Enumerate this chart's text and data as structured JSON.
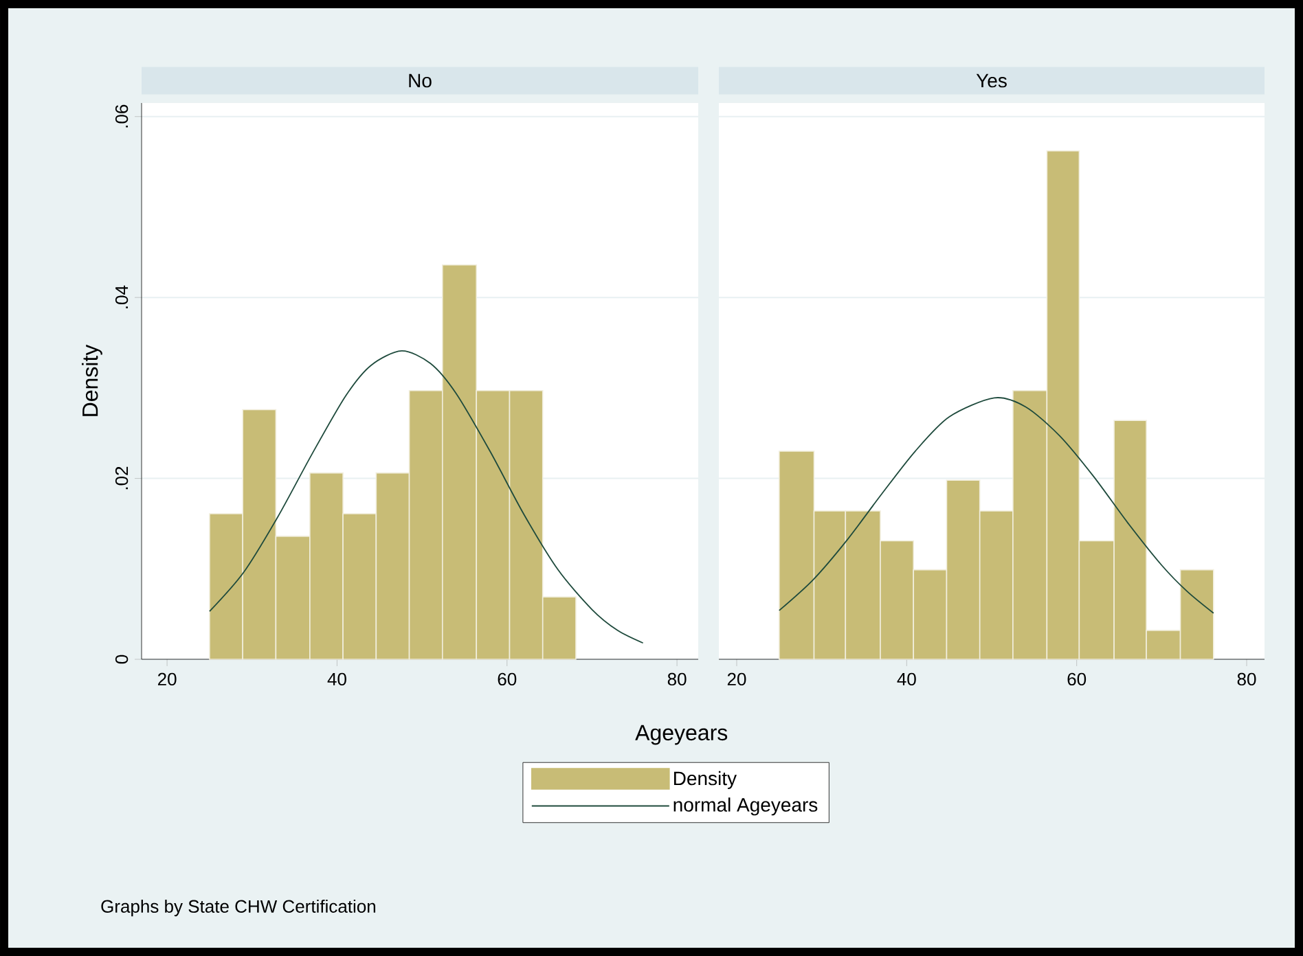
{
  "chart_data": [
    {
      "type": "histogram",
      "title": "No",
      "xlabel": "Ageyears",
      "ylabel": "Density",
      "xlim": [
        17,
        82.5
      ],
      "ylim": [
        0,
        0.0615
      ],
      "xticks": [
        20,
        40,
        60,
        80
      ],
      "yticks": [
        0,
        {
          "value": 0.02,
          "label": ".02"
        },
        {
          "value": 0.04,
          "label": ".04"
        },
        {
          "value": 0.06,
          "label": ".06"
        }
      ],
      "grid": "y",
      "legend": "bottom",
      "annotations": [
        "Graphs by State CHW Certification"
      ],
      "series": [
        {
          "name": "Density",
          "color": "#c8bc76",
          "bins": [
            25,
            28.9,
            32.8,
            36.8,
            40.7,
            44.6,
            48.5,
            52.4,
            56.4,
            60.3,
            64.2,
            68.1
          ],
          "values": [
            0.0161,
            0.0276,
            0.0136,
            0.0206,
            0.0161,
            0.0206,
            0.0297,
            0.0436,
            0.0297,
            0.0297,
            0.0069
          ]
        },
        {
          "name": "normal Ageyears",
          "type": "line",
          "color": "#1e4a3c",
          "x": [
            25,
            29,
            33,
            37,
            41,
            44,
            47.6,
            51,
            54,
            58,
            62,
            66,
            70,
            73,
            76
          ],
          "values": [
            0.0053,
            0.0096,
            0.0157,
            0.0226,
            0.0291,
            0.0325,
            0.0341,
            0.0327,
            0.0294,
            0.023,
            0.016,
            0.0099,
            0.0055,
            0.0032,
            0.0018
          ]
        }
      ]
    },
    {
      "type": "histogram",
      "title": "Yes",
      "xlim": [
        17.9,
        82.1
      ],
      "ylim": [
        0,
        0.0615
      ],
      "xticks": [
        20,
        40,
        60,
        80
      ],
      "yticks": [
        {
          "value": 0,
          "label": null
        },
        {
          "value": 0.02,
          "label": null
        },
        {
          "value": 0.04,
          "label": null
        },
        {
          "value": 0.06,
          "label": null
        }
      ],
      "grid": "y",
      "tick_labels": "x",
      "series": [
        {
          "color": "#c8bc76",
          "bins": [
            25,
            29.1,
            32.8,
            36.9,
            40.8,
            44.7,
            48.6,
            52.5,
            56.5,
            60.3,
            64.4,
            68.2,
            72.2,
            76.1
          ],
          "values": [
            0.023,
            0.0164,
            0.0164,
            0.0131,
            0.0099,
            0.0198,
            0.0164,
            0.0297,
            0.0562,
            0.0131,
            0.0264,
            0.0032,
            0.0099
          ]
        },
        {
          "type": "line",
          "color": "#1e4a3c",
          "x": [
            25,
            29,
            33,
            37,
            41,
            45,
            50.3,
            54,
            58,
            62,
            66,
            70,
            73,
            76.1
          ],
          "values": [
            0.0054,
            0.0088,
            0.0132,
            0.0182,
            0.023,
            0.0268,
            0.0289,
            0.0279,
            0.0247,
            0.0202,
            0.0151,
            0.0104,
            0.0075,
            0.0051
          ]
        }
      ]
    }
  ]
}
